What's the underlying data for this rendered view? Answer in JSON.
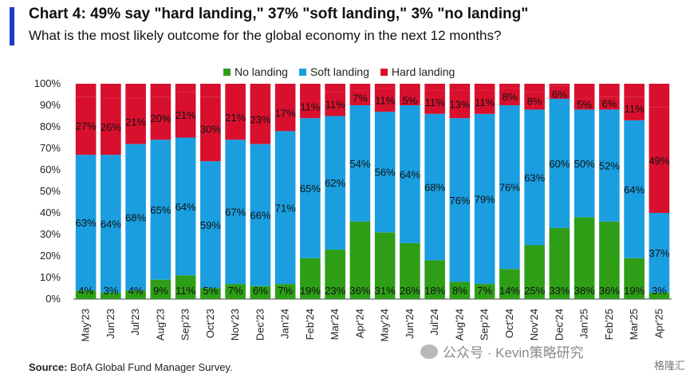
{
  "header": {
    "title": "Chart 4: 49% say \"hard landing,\" 37% \"soft landing,\" 3% \"no landing\"",
    "subtitle": "What is the most likely outcome for the global economy in the next 12 months?"
  },
  "colors": {
    "no_landing": "#2e9e17",
    "soft_landing": "#1a9ee0",
    "hard_landing": "#d8102e",
    "accent": "#1a3cc8"
  },
  "chart_data": {
    "type": "bar",
    "stacked": true,
    "title": "Chart 4: 49% say \"hard landing,\" 37% \"soft landing,\" 3% \"no landing\"",
    "subtitle": "What is the most likely outcome for the global economy in the next 12 months?",
    "categories": [
      "May'23",
      "Jun'23",
      "Jul'23",
      "Aug'23",
      "Sep'23",
      "Oct'23",
      "Nov'23",
      "Dec'23",
      "Jan'24",
      "Feb'24",
      "Mar'24",
      "Apr'24",
      "May'24",
      "Jun'24",
      "Jul'24",
      "Aug'24",
      "Sep'24",
      "Oct'24",
      "Nov'24",
      "Dec'24",
      "Jan'25",
      "Feb'25",
      "Mar'25",
      "Apr'25"
    ],
    "series": [
      {
        "name": "No landing",
        "values": [
          4,
          3,
          4,
          9,
          11,
          5,
          7,
          6,
          7,
          19,
          23,
          36,
          31,
          26,
          18,
          8,
          7,
          14,
          25,
          33,
          38,
          36,
          19,
          3
        ]
      },
      {
        "name": "Soft landing",
        "values": [
          63,
          64,
          68,
          65,
          64,
          59,
          67,
          66,
          71,
          65,
          62,
          54,
          56,
          64,
          68,
          76,
          79,
          76,
          63,
          60,
          50,
          52,
          64,
          37
        ]
      },
      {
        "name": "Hard landing",
        "values": [
          27,
          26,
          21,
          20,
          21,
          30,
          21,
          23,
          17,
          11,
          11,
          7,
          11,
          5,
          11,
          13,
          11,
          8,
          8,
          6,
          5,
          6,
          11,
          49
        ]
      }
    ],
    "ylim": [
      0,
      100
    ],
    "yticks": [
      "0%",
      "10%",
      "20%",
      "30%",
      "40%",
      "50%",
      "60%",
      "70%",
      "80%",
      "90%",
      "100%"
    ],
    "legend_position": "top-center"
  },
  "source": {
    "label": "Source:",
    "text": "BofA Global Fund Manager Survey."
  },
  "watermark": {
    "text": "公众号 · Kevin策略研究",
    "corner": "格隆汇"
  }
}
